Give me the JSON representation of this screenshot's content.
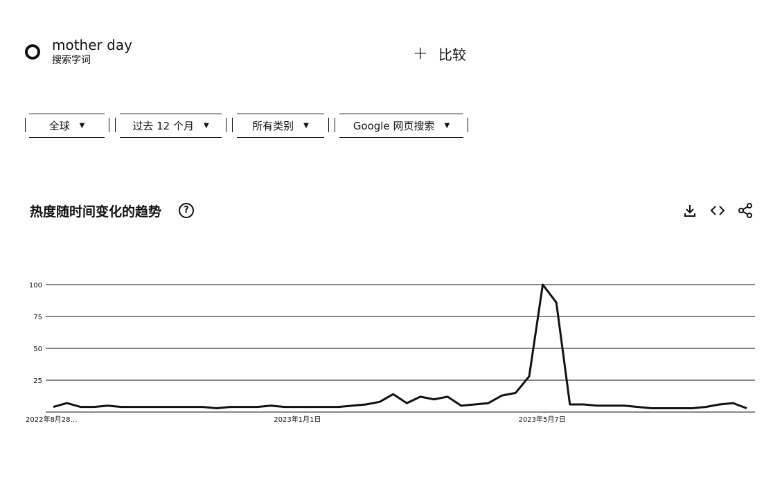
{
  "term": {
    "name": "mother day",
    "subtitle": "搜索字词"
  },
  "compare": {
    "label": "比较"
  },
  "filters": [
    {
      "label": "全球"
    },
    {
      "label": "过去 12 个月"
    },
    {
      "label": "所有类别"
    },
    {
      "label": "Google 网页搜索"
    }
  ],
  "chart_title": "热度随时间变化的趋势",
  "icons": {
    "help": "help-icon",
    "download": "download-icon",
    "embed": "embed-icon",
    "share": "share-icon"
  },
  "chart_data": {
    "type": "line",
    "title": "热度随时间变化的趋势",
    "xlabel": "",
    "ylabel": "",
    "ylim": [
      0,
      100
    ],
    "yticks": [
      "100",
      "75",
      "50",
      "25"
    ],
    "xtick_labels": [
      "2022年8月28…",
      "2023年1月1日",
      "2023年5月7日"
    ],
    "xtick_index": [
      0,
      18,
      36
    ],
    "grid": true,
    "series": [
      {
        "values": [
          4,
          7,
          4,
          4,
          5,
          4,
          4,
          4,
          4,
          4,
          4,
          4,
          3,
          4,
          4,
          4,
          5,
          4,
          4,
          4,
          4,
          4,
          5,
          6,
          8,
          14,
          7,
          12,
          10,
          12,
          5,
          6,
          7,
          13,
          15,
          28,
          100,
          86,
          6,
          6,
          5,
          5,
          5,
          4,
          3,
          3,
          3,
          3,
          4,
          6,
          7,
          3
        ]
      }
    ]
  }
}
